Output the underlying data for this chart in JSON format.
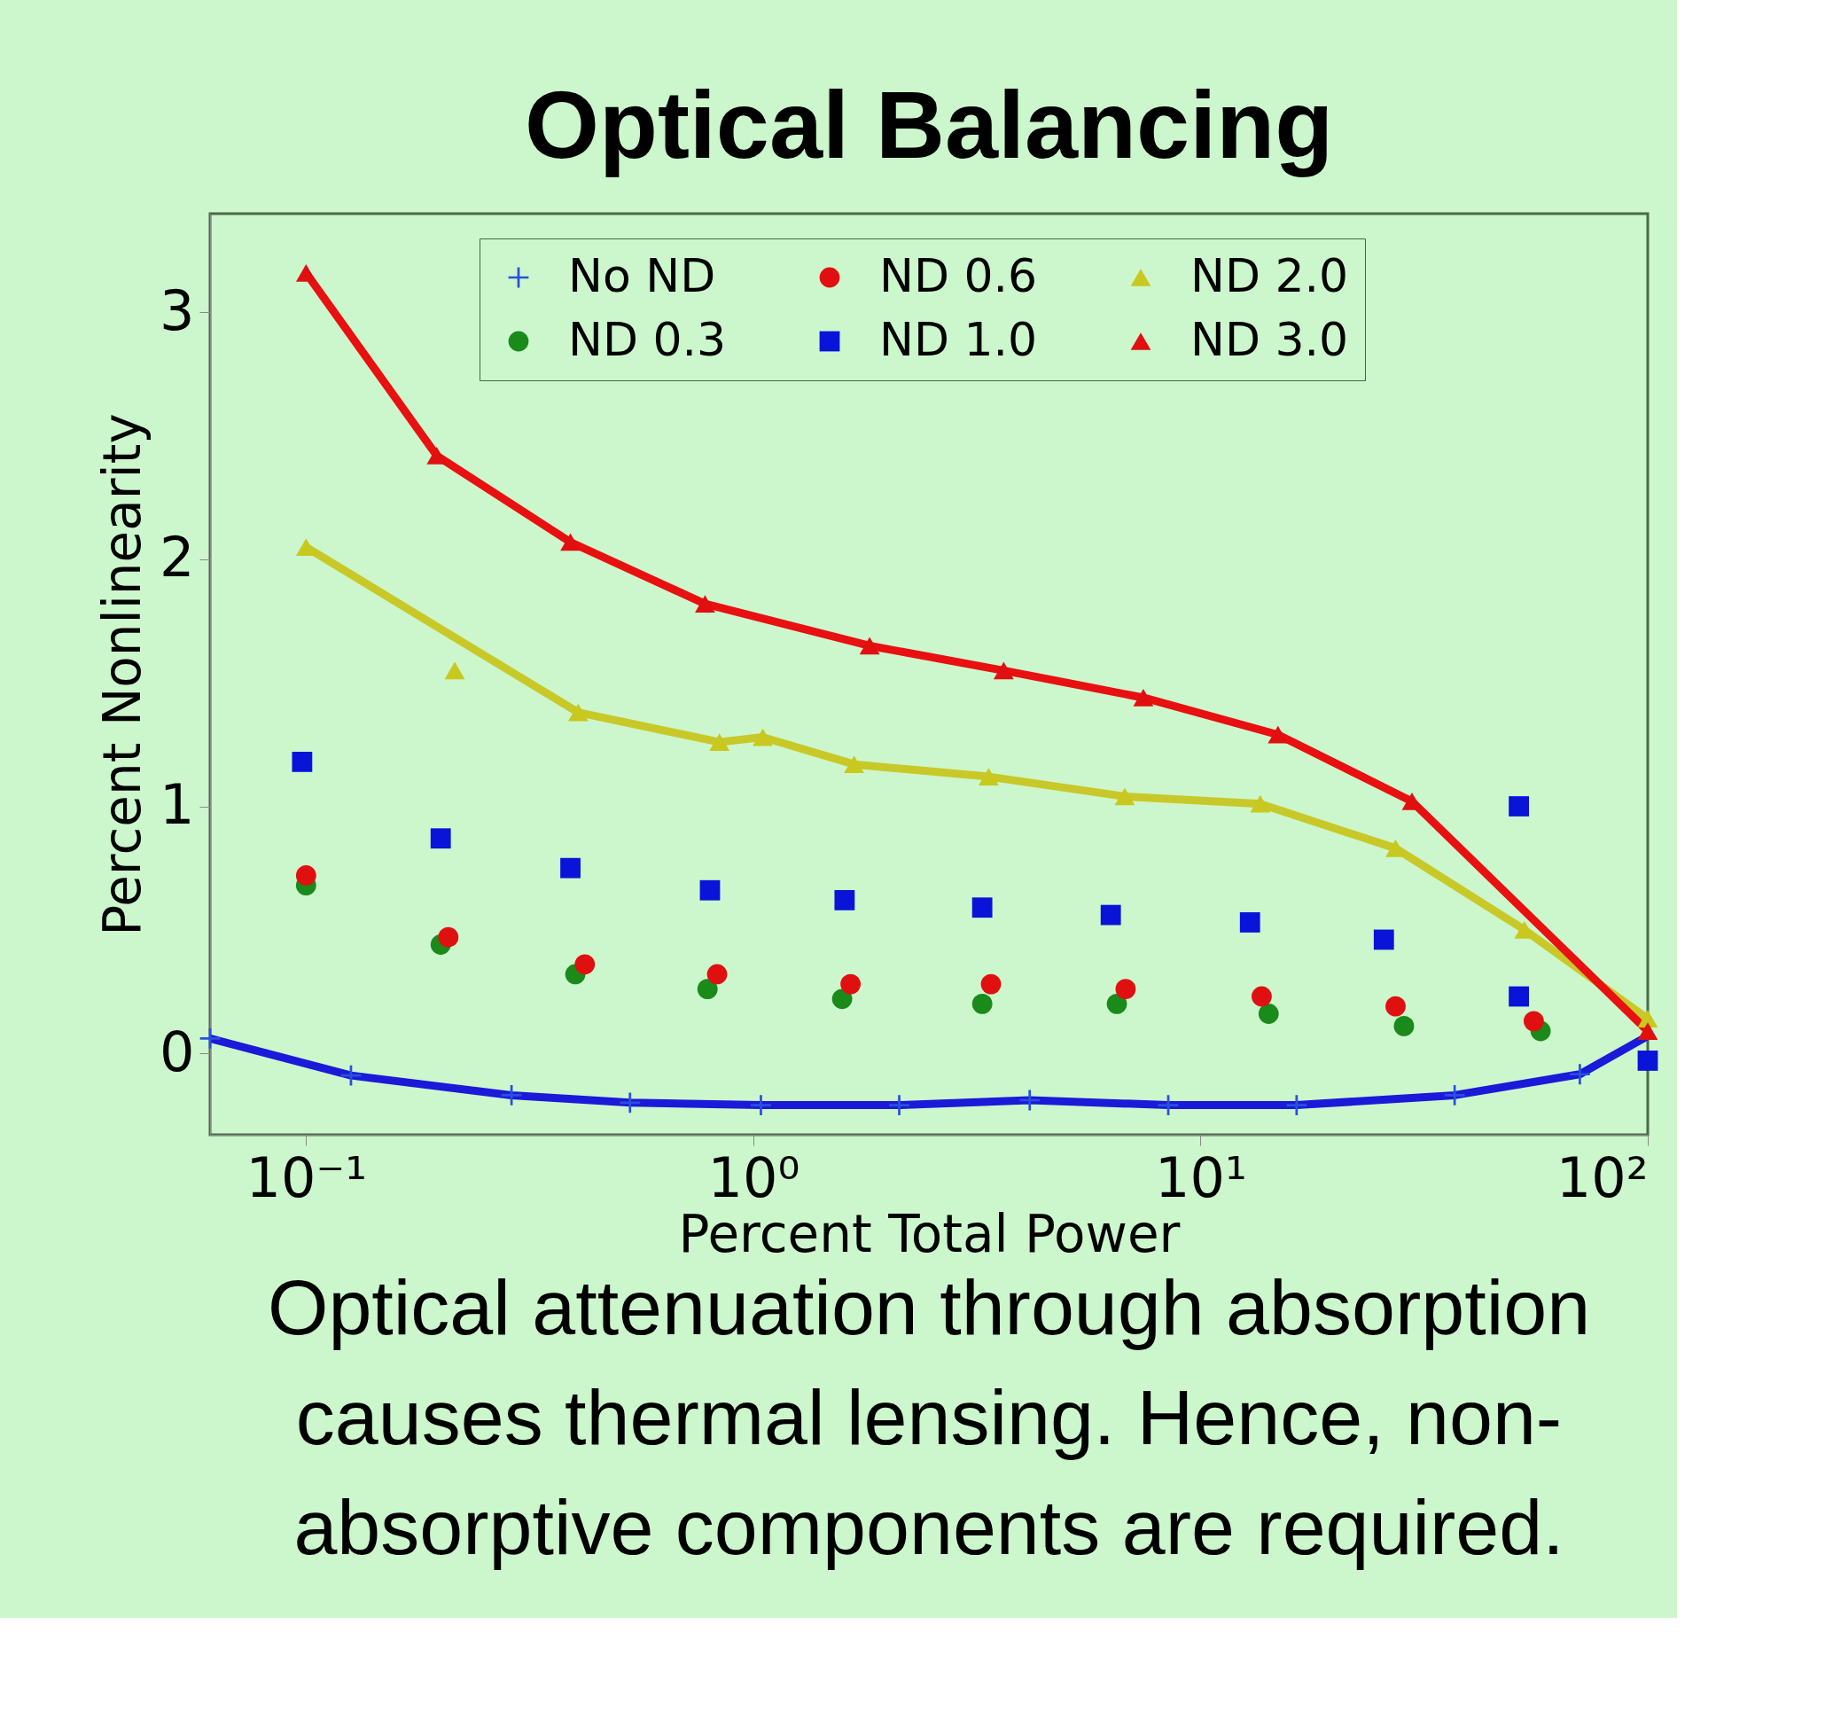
{
  "chart_data": {
    "type": "scatter",
    "title": "Optical Balancing",
    "xlabel": "Percent Total Power",
    "ylabel": "Percent Nonlinearity",
    "log": "x",
    "xlim": [
      0.061,
      100
    ],
    "ylim": [
      -0.33,
      3.4
    ],
    "xticks": [
      {
        "value": 0.1,
        "label": "10⁻¹"
      },
      {
        "value": 1,
        "label": "10⁰"
      },
      {
        "value": 10,
        "label": "10¹"
      },
      {
        "value": 100,
        "label": "10²"
      }
    ],
    "yticks": [
      0,
      1,
      2,
      3
    ],
    "legend": "top right",
    "annotations": [
      "Optical attenuation through absorption\ncauses thermal lensing. Hence, non-\nabsorptive components are required."
    ],
    "series": [
      {
        "type": "line",
        "color": "#1a1ad8",
        "x": [
          0.061,
          0.126,
          0.288,
          0.53,
          1.04,
          2.12,
          4.15,
          8.47,
          16.4,
          37,
          70.5,
          100
        ],
        "values": [
          0.06,
          -0.09,
          -0.17,
          -0.2,
          -0.21,
          -0.21,
          -0.19,
          -0.21,
          -0.21,
          -0.17,
          -0.085,
          0.07
        ]
      },
      {
        "type": "line",
        "color": "#c8c828",
        "x": [
          0.1,
          0.406,
          0.84,
          1.05,
          1.68,
          3.36,
          6.77,
          13.6,
          27.3,
          53,
          100
        ],
        "values": [
          2.05,
          1.38,
          1.26,
          1.28,
          1.17,
          1.12,
          1.04,
          1.01,
          0.83,
          0.5,
          0.14
        ]
      },
      {
        "type": "line",
        "color": "#e81010",
        "x": [
          0.1,
          0.196,
          0.39,
          0.78,
          1.82,
          3.63,
          7.45,
          14.9,
          29.7,
          100
        ],
        "values": [
          3.16,
          2.42,
          2.07,
          1.82,
          1.65,
          1.55,
          1.44,
          1.29,
          1.02,
          0.09
        ]
      },
      {
        "name": "No ND",
        "marker": "cross",
        "color": "#2a4fe0",
        "x": [
          0.061,
          0.126,
          0.288,
          0.53,
          1.04,
          2.12,
          4.15,
          8.47,
          16.4,
          37,
          70.5
        ],
        "values": [
          0.06,
          -0.09,
          -0.17,
          -0.2,
          -0.21,
          -0.21,
          -0.19,
          -0.21,
          -0.21,
          -0.17,
          -0.085
        ]
      },
      {
        "name": "ND 0.3",
        "marker": "circle",
        "color": "#1a8a1a",
        "x": [
          0.1,
          0.2,
          0.4,
          0.79,
          1.58,
          3.25,
          6.5,
          14.2,
          28.5,
          57.6
        ],
        "values": [
          0.68,
          0.44,
          0.32,
          0.26,
          0.22,
          0.2,
          0.2,
          0.16,
          0.11,
          0.09
        ]
      },
      {
        "name": "ND 0.6",
        "marker": "circle",
        "color": "#e01010",
        "x": [
          0.1,
          0.208,
          0.42,
          0.83,
          1.65,
          3.4,
          6.8,
          13.7,
          27.3,
          55.6
        ],
        "values": [
          0.72,
          0.47,
          0.36,
          0.32,
          0.28,
          0.28,
          0.26,
          0.23,
          0.19,
          0.13
        ]
      },
      {
        "name": "ND 1.0",
        "marker": "square",
        "color": "#0a14d8",
        "x": [
          0.098,
          0.2,
          0.39,
          0.8,
          1.6,
          3.25,
          6.3,
          12.9,
          25.7,
          51.5,
          51.5,
          100
        ],
        "values": [
          1.18,
          0.87,
          0.75,
          0.66,
          0.62,
          0.59,
          0.56,
          0.53,
          0.46,
          1.0,
          0.23,
          -0.03
        ]
      },
      {
        "name": "ND 2.0",
        "marker": "triangle",
        "color": "#c8c81e",
        "x": [
          0.1,
          0.215,
          0.406,
          0.84,
          1.05,
          1.68,
          3.36,
          6.77,
          13.6,
          27.3,
          53,
          100
        ],
        "values": [
          2.05,
          1.55,
          1.38,
          1.26,
          1.28,
          1.17,
          1.12,
          1.04,
          1.01,
          0.83,
          0.5,
          0.14
        ]
      },
      {
        "name": "ND 3.0",
        "marker": "triangle",
        "color": "#e01010",
        "x": [
          0.1,
          0.196,
          0.39,
          0.78,
          1.82,
          3.63,
          7.45,
          14.9,
          29.7,
          100
        ],
        "values": [
          3.16,
          2.42,
          2.07,
          1.82,
          1.65,
          1.55,
          1.44,
          1.29,
          1.02,
          0.09
        ]
      }
    ]
  }
}
